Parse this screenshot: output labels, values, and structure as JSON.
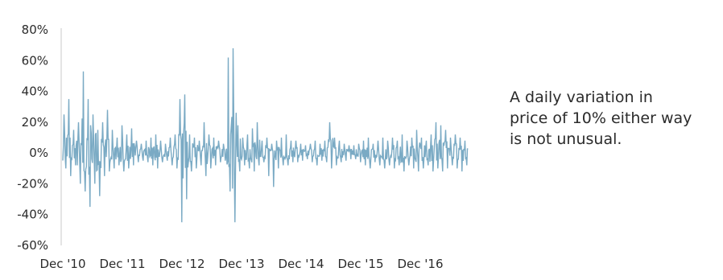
{
  "chart_data": {
    "type": "line",
    "title": "",
    "xlabel": "",
    "ylabel": "",
    "ylim": [
      -60,
      80
    ],
    "y_unit": "%",
    "y_ticks": [
      80,
      60,
      40,
      20,
      0,
      -20,
      -40,
      -60
    ],
    "y_tick_labels": [
      "80%",
      "60%",
      "40%",
      "20%",
      "0%",
      "-20%",
      "-40%",
      "-60%"
    ],
    "x_tick_labels": [
      "Dec '10",
      "Dec '11",
      "Dec '12",
      "Dec '13",
      "Dec '14",
      "Dec '15",
      "Dec '16"
    ],
    "x_range": [
      "2010-12",
      "2017-11"
    ],
    "grid": false,
    "legend": "none",
    "colors": {
      "series": "#7aaac4",
      "axis": "#c8c8c8",
      "text": "#2b2b2b"
    },
    "series": [
      {
        "name": "",
        "x": [
          "2010-12",
          "2011-01",
          "2011-02",
          "2011-03",
          "2011-04",
          "2011-05",
          "2011-06",
          "2011-07",
          "2011-08",
          "2011-09",
          "2011-10",
          "2011-11",
          "2011-12",
          "2012-01",
          "2012-02",
          "2012-03",
          "2012-04",
          "2012-05",
          "2012-06",
          "2012-07",
          "2012-08",
          "2012-09",
          "2012-10",
          "2012-11",
          "2012-12",
          "2013-01",
          "2013-02",
          "2013-03",
          "2013-04",
          "2013-05",
          "2013-06",
          "2013-07",
          "2013-08",
          "2013-09",
          "2013-10",
          "2013-11",
          "2013-12",
          "2014-01",
          "2014-02",
          "2014-03",
          "2014-04",
          "2014-05",
          "2014-06",
          "2014-07",
          "2014-08",
          "2014-09",
          "2014-10",
          "2014-11",
          "2014-12",
          "2015-01",
          "2015-02",
          "2015-03",
          "2015-04",
          "2015-05",
          "2015-06",
          "2015-07",
          "2015-08",
          "2015-09",
          "2015-10",
          "2015-11",
          "2015-12",
          "2016-01",
          "2016-02",
          "2016-03",
          "2016-04",
          "2016-05",
          "2016-06",
          "2016-07",
          "2016-08",
          "2016-09",
          "2016-10",
          "2016-11",
          "2016-12",
          "2017-01",
          "2017-02",
          "2017-03",
          "2017-04",
          "2017-05",
          "2017-06",
          "2017-07",
          "2017-08",
          "2017-09",
          "2017-10",
          "2017-11"
        ],
        "high": [
          25,
          35,
          15,
          20,
          53,
          35,
          25,
          15,
          20,
          28,
          15,
          10,
          18,
          12,
          16,
          8,
          6,
          8,
          10,
          12,
          8,
          6,
          10,
          12,
          35,
          38,
          12,
          10,
          8,
          20,
          12,
          10,
          8,
          6,
          62,
          68,
          18,
          10,
          12,
          16,
          20,
          8,
          10,
          6,
          8,
          10,
          12,
          8,
          8,
          6,
          5,
          6,
          8,
          6,
          8,
          20,
          10,
          8,
          6,
          5,
          5,
          6,
          8,
          10,
          6,
          8,
          10,
          8,
          10,
          8,
          12,
          8,
          10,
          15,
          10,
          8,
          12,
          20,
          18,
          15,
          10,
          12,
          10,
          8
        ],
        "low": [
          -10,
          -15,
          -8,
          -20,
          -25,
          -35,
          -20,
          -28,
          -15,
          -12,
          -10,
          -8,
          -12,
          -10,
          -8,
          -6,
          -5,
          -6,
          -8,
          -10,
          -6,
          -5,
          -8,
          -10,
          -45,
          -30,
          -12,
          -10,
          -8,
          -15,
          -10,
          -8,
          -6,
          -5,
          -25,
          -45,
          -12,
          -8,
          -10,
          -12,
          -8,
          -6,
          -15,
          -22,
          -10,
          -8,
          -8,
          -6,
          -6,
          -5,
          -4,
          -6,
          -8,
          -5,
          -6,
          -10,
          -8,
          -6,
          -5,
          -4,
          -4,
          -6,
          -8,
          -10,
          -6,
          -8,
          -10,
          -8,
          -10,
          -8,
          -12,
          -8,
          -10,
          -12,
          -10,
          -8,
          -12,
          -10,
          -12,
          -10,
          -8,
          -10,
          -12,
          -8
        ]
      }
    ]
  },
  "annotation": {
    "lines": [
      "A daily variation in",
      "price of 10% either way",
      "is not unusual."
    ]
  }
}
